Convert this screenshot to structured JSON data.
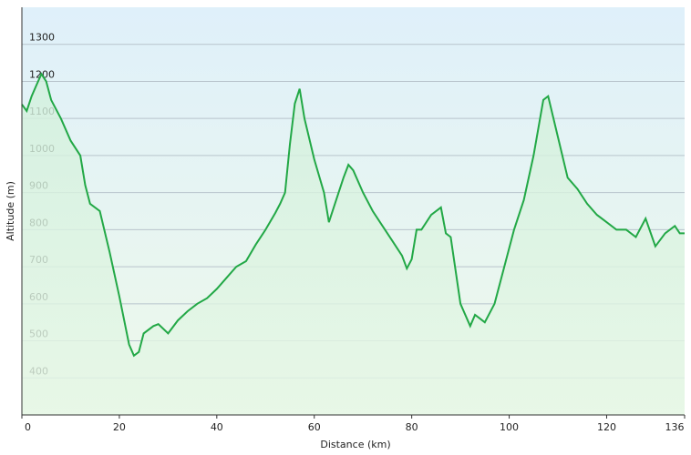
{
  "chart_data": {
    "type": "area",
    "xlabel": "Distance  (km)",
    "ylabel": "Altitude (m)",
    "x": [
      0,
      1,
      2,
      3,
      4,
      5,
      6,
      8,
      10,
      12,
      13,
      14,
      16,
      18,
      20,
      22,
      23,
      24,
      25,
      27,
      28,
      30,
      32,
      34,
      36,
      38,
      40,
      42,
      44,
      46,
      48,
      50,
      52,
      53,
      54,
      55,
      56,
      57,
      58,
      60,
      62,
      63,
      64,
      66,
      67,
      68,
      70,
      72,
      74,
      76,
      78,
      79,
      80,
      81,
      82,
      84,
      86,
      87,
      88,
      90,
      92,
      93,
      94,
      95,
      97,
      99,
      101,
      103,
      105,
      107,
      108,
      110,
      112,
      114,
      116,
      118,
      120,
      122,
      124,
      126,
      128,
      130,
      132,
      134,
      135,
      136
    ],
    "series": [
      {
        "name": "Altitude",
        "color": "#22a846",
        "values": [
          1138,
          1120,
          1160,
          1190,
          1220,
          1200,
          1150,
          1100,
          1040,
          1000,
          920,
          870,
          850,
          740,
          620,
          490,
          460,
          470,
          520,
          540,
          545,
          520,
          555,
          580,
          600,
          615,
          640,
          670,
          700,
          715,
          760,
          800,
          845,
          870,
          900,
          1030,
          1140,
          1180,
          1100,
          990,
          900,
          820,
          860,
          940,
          975,
          960,
          900,
          850,
          810,
          770,
          730,
          695,
          720,
          800,
          800,
          840,
          860,
          790,
          780,
          600,
          540,
          570,
          560,
          550,
          600,
          700,
          800,
          880,
          1000,
          1150,
          1160,
          1050,
          940,
          910,
          870,
          840,
          820,
          800,
          800,
          780,
          830,
          755,
          790,
          810,
          790,
          790
        ]
      }
    ],
    "xlim": [
      0,
      136
    ],
    "ylim": [
      300,
      1400
    ],
    "xticks": [
      0,
      20,
      40,
      60,
      80,
      100,
      120,
      136
    ],
    "yticks": [
      400,
      500,
      600,
      700,
      800,
      900,
      1000,
      1100,
      1200,
      1300
    ],
    "grid": true
  }
}
